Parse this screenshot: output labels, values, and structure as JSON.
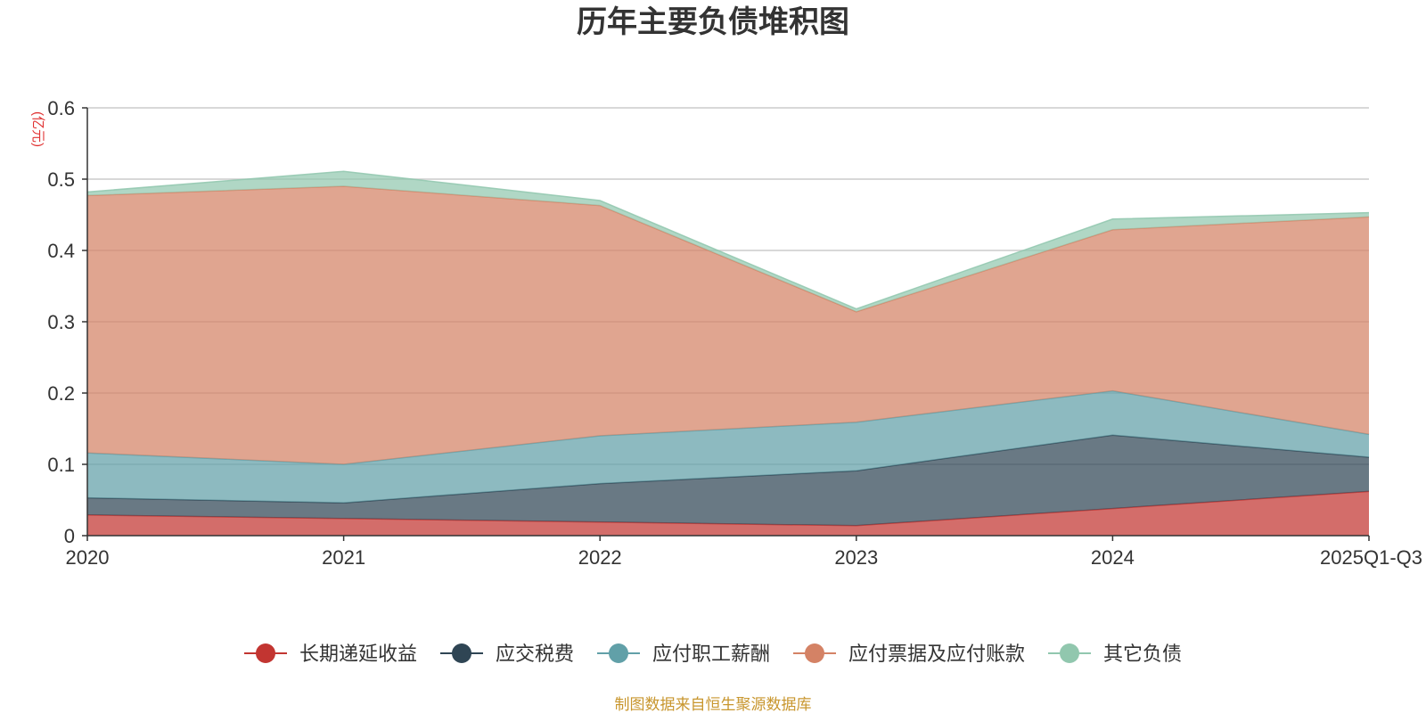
{
  "chart_data": {
    "type": "area",
    "stacked": true,
    "title": "历年主要负债堆积图",
    "unit": "(亿元)",
    "categories": [
      "2020",
      "2021",
      "2022",
      "2023",
      "2024",
      "2025Q1-Q3"
    ],
    "ylim": [
      0,
      0.6
    ],
    "yticks": [
      "0",
      "0.1",
      "0.2",
      "0.3",
      "0.4",
      "0.5",
      "0.6"
    ],
    "grid": true,
    "legend_position": "bottom-center",
    "series": [
      {
        "name": "长期递延收益",
        "color": "#c23531",
        "values": [
          0.029,
          0.024,
          0.019,
          0.014,
          0.038,
          0.062
        ]
      },
      {
        "name": "应交税费",
        "color": "#2f4554",
        "values": [
          0.024,
          0.022,
          0.054,
          0.077,
          0.103,
          0.048
        ]
      },
      {
        "name": "应付职工薪酬",
        "color": "#61a0a8",
        "values": [
          0.063,
          0.054,
          0.067,
          0.068,
          0.062,
          0.032
        ]
      },
      {
        "name": "应付票据及应付账款",
        "color": "#d48265",
        "values": [
          0.361,
          0.39,
          0.323,
          0.155,
          0.226,
          0.305
        ]
      },
      {
        "name": "其它负债",
        "color": "#91c7ae",
        "values": [
          0.005,
          0.021,
          0.007,
          0.004,
          0.015,
          0.006
        ]
      }
    ],
    "source": "制图数据来自恒生聚源数据库"
  }
}
